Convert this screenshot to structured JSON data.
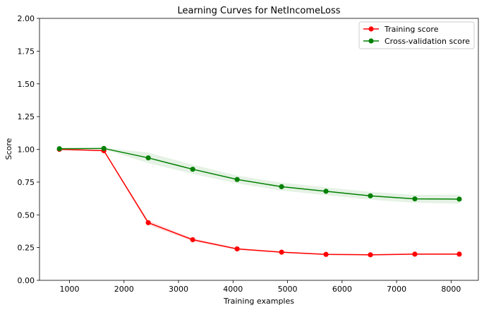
{
  "chart_data": {
    "type": "line",
    "title": "Learning Curves for NetIncomeLoss",
    "xlabel": "Training examples",
    "ylabel": "Score",
    "xlim": [
      450,
      8500
    ],
    "ylim": [
      0.0,
      2.0
    ],
    "xticks": [
      1000,
      2000,
      3000,
      4000,
      5000,
      6000,
      7000,
      8000
    ],
    "yticks": [
      "0.00",
      "0.25",
      "0.50",
      "0.75",
      "1.00",
      "1.25",
      "1.50",
      "1.75",
      "2.00"
    ],
    "legend_position": "top-right",
    "x": [
      815,
      1630,
      2445,
      3260,
      4075,
      4890,
      5705,
      6520,
      7335,
      8150
    ],
    "series": [
      {
        "name": "Training score",
        "color": "#ff0000",
        "values": [
          1.0,
          0.99,
          0.44,
          0.31,
          0.24,
          0.215,
          0.198,
          0.195,
          0.2,
          0.2
        ],
        "band": [
          0.0,
          0.005,
          0.02,
          0.012,
          0.008,
          0.006,
          0.005,
          0.005,
          0.006,
          0.006
        ]
      },
      {
        "name": "Cross-validation score",
        "color": "#008000",
        "values": [
          1.005,
          1.007,
          0.935,
          0.848,
          0.77,
          0.715,
          0.68,
          0.645,
          0.622,
          0.62
        ],
        "band": [
          0.0,
          0.005,
          0.04,
          0.035,
          0.03,
          0.03,
          0.03,
          0.03,
          0.03,
          0.035
        ]
      }
    ]
  }
}
